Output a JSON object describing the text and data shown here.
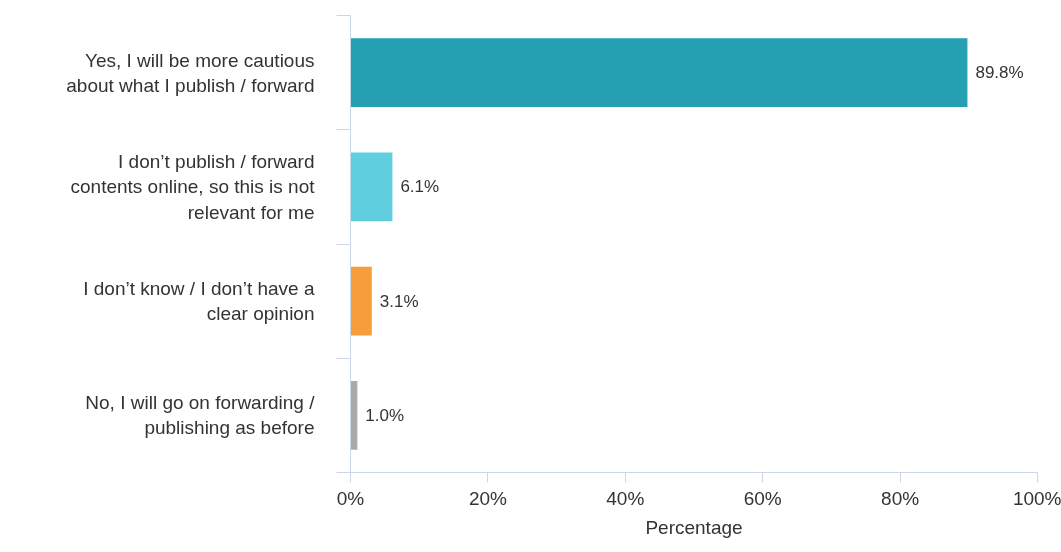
{
  "chart_data": {
    "type": "bar",
    "orientation": "horizontal",
    "xlabel": "Percentage",
    "categories": [
      "Yes, I will be more cautious about what I publish / forward",
      "I don’t publish / forward contents online, so this is not relevant for me",
      "I don’t know / I don’t have a clear opinion",
      "No, I will go on forwarding / publishing as before"
    ],
    "values": [
      89.8,
      6.1,
      3.1,
      1.0
    ],
    "colors": [
      "#24a0b2",
      "#5fcfe0",
      "#f89d3c",
      "#aaaaaa"
    ],
    "value_labels": [
      "89.8%",
      "6.1%",
      "3.1%",
      "1.0%"
    ],
    "xlim": [
      0,
      100
    ],
    "xticks": [
      {
        "value": 0,
        "label": "0%"
      },
      {
        "value": 20,
        "label": "20%"
      },
      {
        "value": 40,
        "label": "40%"
      },
      {
        "value": 60,
        "label": "60%"
      },
      {
        "value": 80,
        "label": "80%"
      },
      {
        "value": 100,
        "label": "100%"
      }
    ],
    "grid": false
  }
}
